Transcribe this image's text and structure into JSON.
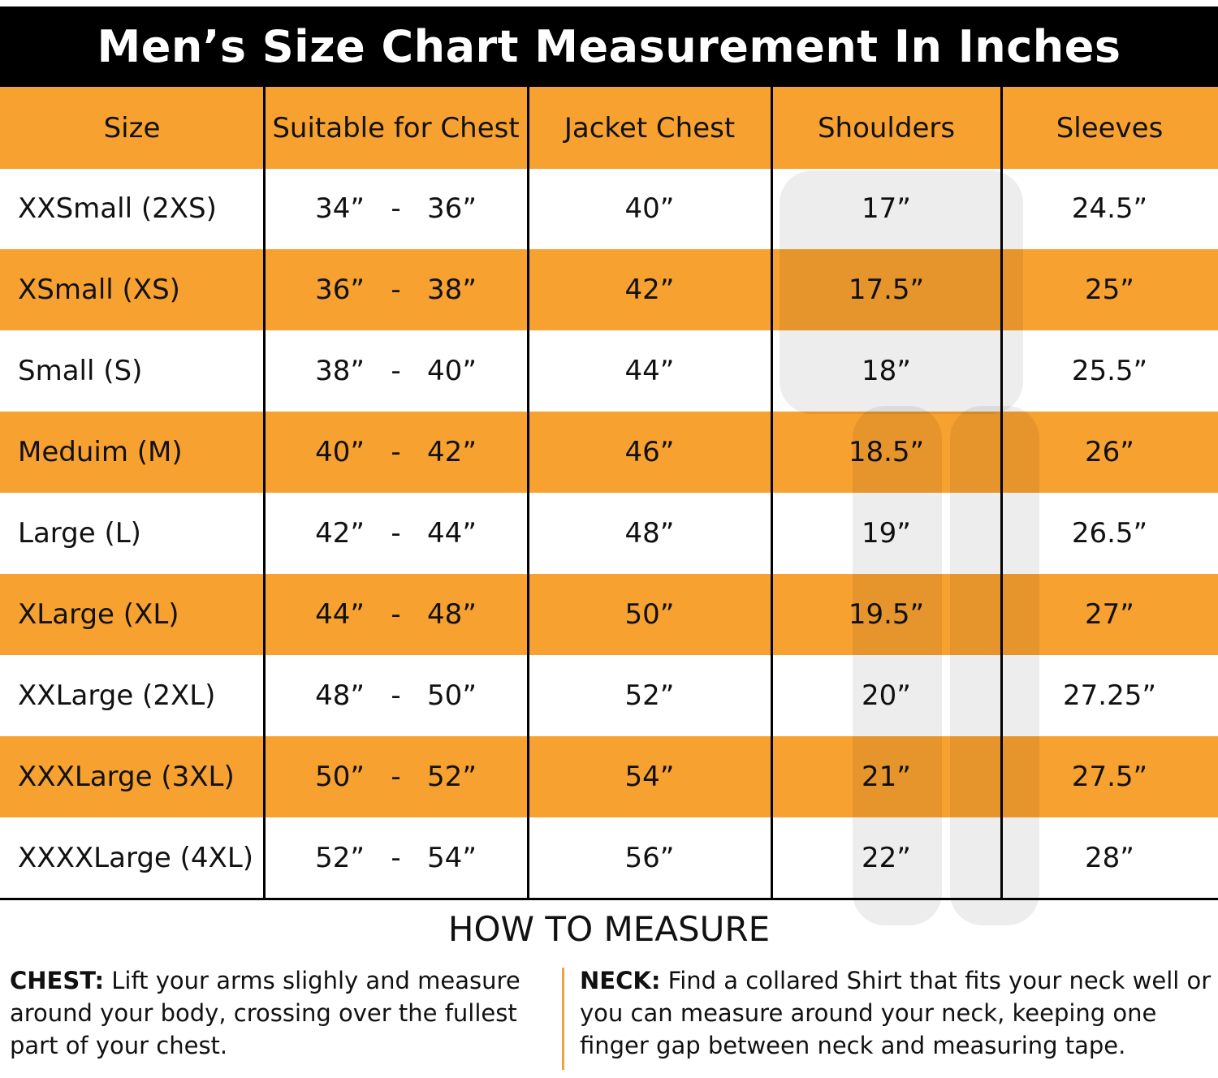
{
  "header": {
    "title": "Men’s Size Chart Measurement In Inches"
  },
  "table": {
    "columns": [
      "Size",
      "Suitable for Chest",
      "Jacket Chest",
      "Shoulders",
      "Sleeves"
    ],
    "rows": [
      [
        "XXSmall (2XS)",
        "34”   -   36”",
        "40”",
        "17”",
        "24.5”"
      ],
      [
        "XSmall (XS)",
        "36”   -   38”",
        "42”",
        "17.5”",
        "25”"
      ],
      [
        "Small (S)",
        "38”   -   40”",
        "44”",
        "18”",
        "25.5”"
      ],
      [
        "Meduim (M)",
        "40”   -   42”",
        "46”",
        "18.5”",
        "26”"
      ],
      [
        "Large (L)",
        "42”   -   44”",
        "48”",
        "19”",
        "26.5”"
      ],
      [
        "XLarge (XL)",
        "44”   -   48”",
        "50”",
        "19.5”",
        "27”"
      ],
      [
        "XXLarge (2XL)",
        "48”   -   50”",
        "52”",
        "20”",
        "27.25”"
      ],
      [
        "XXXLarge (3XL)",
        "50”   -   52”",
        "54”",
        "21”",
        "27.5”"
      ],
      [
        "XXXXLarge (4XL)",
        "52”   -   54”",
        "56”",
        "22”",
        "28”"
      ]
    ]
  },
  "how_to_measure": {
    "title": "HOW TO MEASURE",
    "chest": {
      "label": "CHEST:",
      "text": "Lift your arms slighly and measure around your body, crossing over the fullest part of your chest."
    },
    "neck": {
      "label": "NECK:",
      "text": "Find a collared Shirt that fits your neck well or you can measure around your neck, keeping one finger gap between neck and measuring tape."
    }
  }
}
